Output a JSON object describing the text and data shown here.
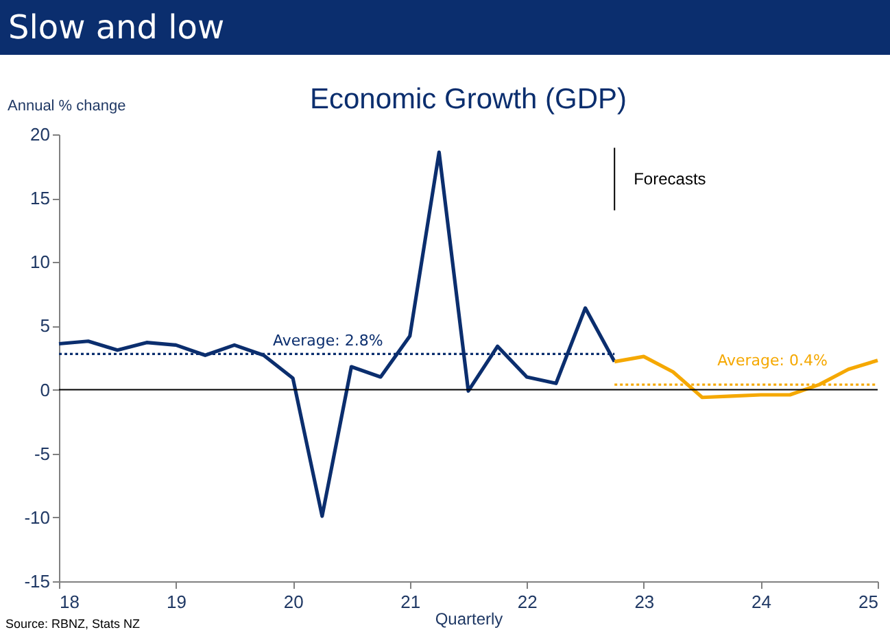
{
  "chart_data": {
    "type": "line",
    "title": "Slow and low",
    "subtitle": "Economic Growth (GDP)",
    "ylabel": "Annual % change",
    "xlabel": "Quarterly",
    "xlim": [
      18,
      25
    ],
    "xticks": [
      18,
      19,
      20,
      21,
      22,
      23,
      24,
      25
    ],
    "ylim": [
      -15,
      20
    ],
    "yticks": [
      -15,
      -10,
      -5,
      0,
      5,
      10,
      15,
      20
    ],
    "series": [
      {
        "color": "#0b2e6e",
        "x": [
          18,
          18.25,
          18.5,
          18.75,
          19,
          19.25,
          19.5,
          19.75,
          20,
          20.25,
          20.5,
          20.75,
          21,
          21.25,
          21.5,
          21.75,
          22,
          22.25,
          22.5,
          22.75
        ],
        "values": [
          3.6,
          3.8,
          3.1,
          3.7,
          3.5,
          2.7,
          3.5,
          2.7,
          0.9,
          -9.9,
          1.8,
          1.0,
          4.2,
          18.6,
          -0.1,
          3.4,
          1.0,
          0.5,
          6.4,
          2.2
        ]
      },
      {
        "color": "#f5a800",
        "x": [
          22.75,
          23,
          23.25,
          23.5,
          23.75,
          24,
          24.25,
          24.5,
          24.75,
          25
        ],
        "values": [
          2.2,
          2.6,
          1.4,
          -0.6,
          -0.5,
          -0.4,
          -0.4,
          0.4,
          1.6,
          2.3
        ]
      },
      {
        "color": "#0b2e6e",
        "line_style": "dotted",
        "x": [
          18,
          22.75
        ],
        "values": [
          2.8,
          2.8
        ]
      },
      {
        "color": "#f5a800",
        "line_style": "dotted",
        "x": [
          22.75,
          25
        ],
        "values": [
          0.4,
          0.4
        ]
      }
    ],
    "ref_lines": [
      {
        "axis": "y",
        "value": 0,
        "color": "#000000"
      },
      {
        "axis": "x",
        "value": 22.75,
        "label": "Forecasts",
        "color": "#000000"
      }
    ],
    "annotations": [
      {
        "text": "Average: 2.8%",
        "x": 20.3,
        "y": 2.8
      },
      {
        "text": "Average: 0.4%",
        "x": 24.1,
        "y": 0.4
      },
      "Source: RBNZ, Stats NZ"
    ]
  }
}
